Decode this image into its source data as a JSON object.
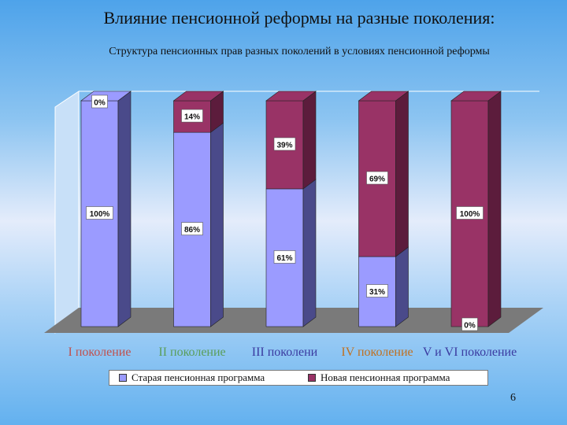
{
  "slide": {
    "title": "Влияние пенсионной реформы на разные поколения:",
    "subtitle": "Структура пенсионных прав разных поколений в условиях пенсионной реформы",
    "page_number": "6"
  },
  "colors": {
    "old": "#9b9bff",
    "old_side": "#4a4a8a",
    "new": "#993366",
    "new_side": "#5c1c3c",
    "floor": "#7a7a7a",
    "wall": "#c8e0f8"
  },
  "chart_data": {
    "type": "bar",
    "stacked": true,
    "categories": [
      "I поколение",
      "II поколение",
      "III поколени",
      "IV поколение",
      "V и VI поколение"
    ],
    "category_colors": [
      "#c0504d",
      "#5a9e5a",
      "#3a3aa0",
      "#c07020",
      "#3a3aa0"
    ],
    "series": [
      {
        "name": "Старая пенсионная программа",
        "values": [
          100,
          86,
          61,
          31,
          0
        ],
        "labels": [
          "100%",
          "86%",
          "61%",
          "31%",
          "0%"
        ]
      },
      {
        "name": "Новая пенсионная программа",
        "values": [
          0,
          14,
          39,
          69,
          100
        ],
        "labels": [
          "0%",
          "14%",
          "39%",
          "69%",
          "100%"
        ]
      }
    ],
    "ylim": [
      0,
      100
    ],
    "legend_position": "bottom"
  }
}
